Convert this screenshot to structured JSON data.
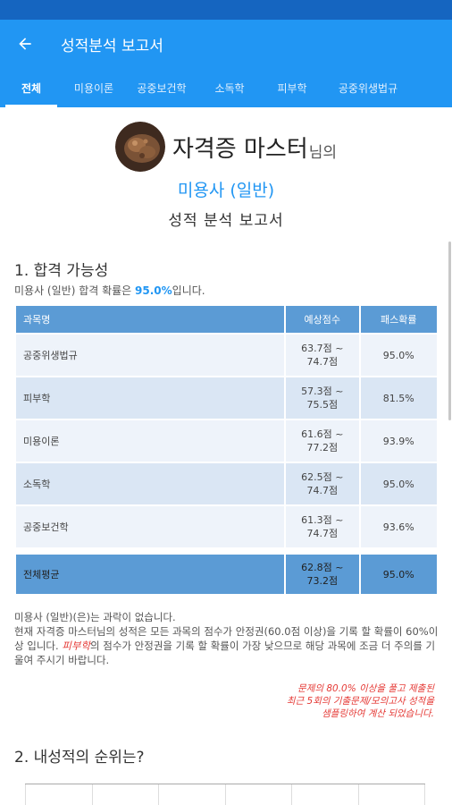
{
  "appbar": {
    "title": "성적분석 보고서"
  },
  "tabs": [
    {
      "label": "전체",
      "active": true
    },
    {
      "label": "미용이론",
      "active": false
    },
    {
      "label": "공중보건학",
      "active": false
    },
    {
      "label": "소독학",
      "active": false
    },
    {
      "label": "피부학",
      "active": false
    },
    {
      "label": "공중위생법규",
      "active": false
    }
  ],
  "hero": {
    "name": "자격증 마스터",
    "suffix": "님의",
    "subject": "미용사 (일반)",
    "report_title": "성적 분석 보고서"
  },
  "section1": {
    "title": "1. 합격 가능성",
    "desc_prefix": "미용사 (일반) 합격 확률은 ",
    "desc_rate": "95.0%",
    "desc_suffix": "입니다."
  },
  "table": {
    "headers": [
      "과목명",
      "예상점수",
      "패스확률"
    ],
    "rows": [
      {
        "subject": "공중위생법규",
        "score_low": "63.7점 ~",
        "score_high": "74.7점",
        "pass": "95.0%"
      },
      {
        "subject": "피부학",
        "score_low": "57.3점 ~",
        "score_high": "75.5점",
        "pass": "81.5%"
      },
      {
        "subject": "미용이론",
        "score_low": "61.6점 ~",
        "score_high": "77.2점",
        "pass": "93.9%"
      },
      {
        "subject": "소독학",
        "score_low": "62.5점 ~",
        "score_high": "74.7점",
        "pass": "95.0%"
      },
      {
        "subject": "공중보건학",
        "score_low": "61.3점 ~",
        "score_high": "74.7점",
        "pass": "93.6%"
      }
    ],
    "average": {
      "subject": "전체평균",
      "score_low": "62.8점 ~",
      "score_high": "73.2점",
      "pass": "95.0%"
    }
  },
  "summary": {
    "line1": "미용사 (일반)(은)는 과락이 없습니다.",
    "line2_part1": "현재 자격증 마스터님의 성적은 모든 과목의 점수가 안정권(60.0점 이상)을 기록 할 확률이 60%이상 입니다. ",
    "weak_subject": "피부학",
    "line2_part2": "의 점수가 안정권을 기록 할 확률이 가장 낮으므로 해당 과목에 조금 더 주의를 기울여 주시기 바랍니다."
  },
  "note": {
    "line1": "문제의 80.0% 이상을 풀고 제출된",
    "line2": "최근 5회의 기출문제/모의고사 성적을",
    "line3": "샘플링하여 계산 되었습니다."
  },
  "section2": {
    "title": "2. 내성적의 순위는?"
  },
  "colors": {
    "primary": "#2196f3",
    "status_bar": "#1565c0",
    "table_header": "#5b9bd5",
    "accent_red": "#e53935"
  },
  "icons": {
    "back": "arrow-left-icon",
    "avatar": "profile-photo"
  }
}
